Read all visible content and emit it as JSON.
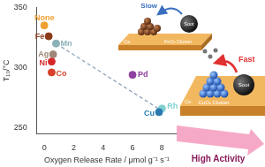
{
  "chart_data": {
    "type": "scatter",
    "x_label": "Oxygen Release Rate / μmol g⁻¹ s⁻¹",
    "y_label": "T₁₀/°C",
    "x": [
      0,
      0.3,
      0.8,
      0.6,
      0.5,
      0.5,
      6.0,
      8.0,
      7.8
    ],
    "values": [
      335,
      326,
      320,
      311,
      305,
      296,
      294,
      266,
      263
    ],
    "labels": [
      "None",
      "Fe",
      "Mn",
      "Ag",
      "Ni",
      "Co",
      "Pd",
      "Rh",
      "Cu"
    ],
    "colors": [
      "#f0a030",
      "#8b3a1a",
      "#8ab0b8",
      "#a08878",
      "#d42a2a",
      "#d8402a",
      "#9040a0",
      "#80d0d0",
      "#2a7ab0"
    ],
    "trend_line": {
      "x": [
        0.8,
        8.0
      ],
      "values": [
        320,
        264
      ],
      "line_style": "dashed",
      "color": "#8aa0b8"
    },
    "xlim": [
      -0.5,
      9
    ],
    "xticks": [
      0,
      2,
      4,
      6,
      8
    ],
    "ylim": [
      245,
      350
    ],
    "yticks": [
      250,
      300,
      350
    ],
    "grid": false,
    "legend": null
  },
  "illustration": {
    "soot": "Soot",
    "ce": "Ce",
    "slow_cluster": "FeOₓ Cluster",
    "fast_cluster": "CuOₓ Cluster",
    "slow": "Slow",
    "fast": "Fast",
    "result": "High Activity"
  }
}
